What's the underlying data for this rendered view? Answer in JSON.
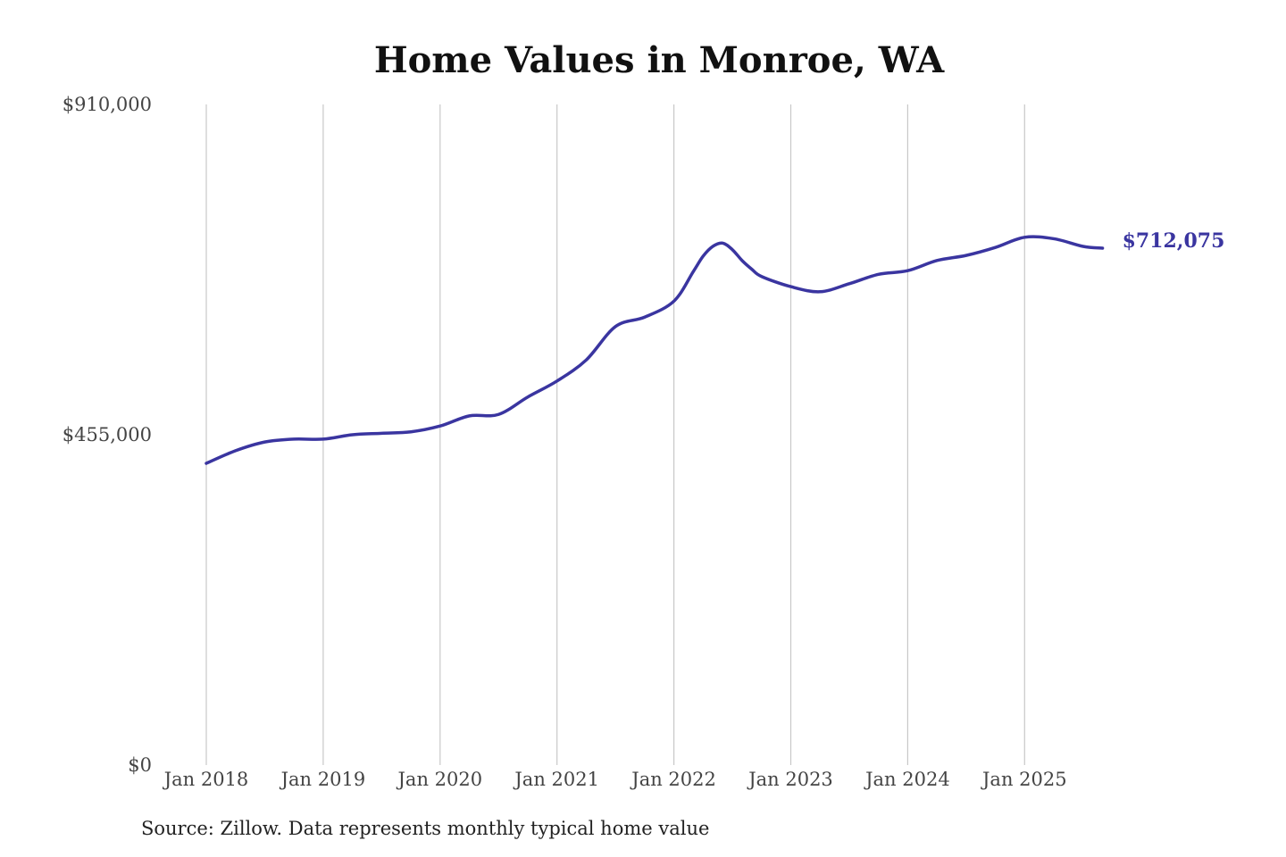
{
  "chart_data": {
    "type": "line",
    "title": "Home Values in Monroe, WA",
    "xlabel": "",
    "ylabel": "",
    "ylim": [
      0,
      910000
    ],
    "y_ticks": [
      "$0",
      "$455,000",
      "$910,000"
    ],
    "y_tick_values": [
      0,
      455000,
      910000
    ],
    "x_ticks": [
      "Jan 2018",
      "Jan 2019",
      "Jan 2020",
      "Jan 2021",
      "Jan 2022",
      "Jan 2023",
      "Jan 2024",
      "Jan 2025"
    ],
    "grid": "vertical",
    "line_color": "#3a35a0",
    "series": [
      {
        "x": [
          "2018-01",
          "2018-04",
          "2018-07",
          "2018-10",
          "2019-01",
          "2019-04",
          "2019-07",
          "2019-10",
          "2020-01",
          "2020-04",
          "2020-07",
          "2020-10",
          "2021-01",
          "2021-04",
          "2021-07",
          "2021-10",
          "2022-01",
          "2022-03",
          "2022-04",
          "2022-05",
          "2022-06",
          "2022-07",
          "2022-08",
          "2022-09",
          "2022-10",
          "2023-01",
          "2023-04",
          "2023-07",
          "2023-10",
          "2024-01",
          "2024-04",
          "2024-07",
          "2024-10",
          "2025-01",
          "2025-04",
          "2025-07",
          "2025-09"
        ],
        "values": [
          415600,
          433000,
          445000,
          449000,
          449000,
          455000,
          457000,
          459000,
          467000,
          481000,
          483000,
          507000,
          529000,
          558000,
          604000,
          617000,
          639000,
          680000,
          701000,
          714500,
          719000,
          710000,
          695000,
          683000,
          673000,
          659000,
          652000,
          663000,
          676000,
          681000,
          695000,
          702000,
          713000,
          727000,
          725000,
          714500,
          712075
        ]
      }
    ],
    "end_label": "$712,075"
  },
  "source": "Source: Zillow. Data represents monthly typical home value"
}
